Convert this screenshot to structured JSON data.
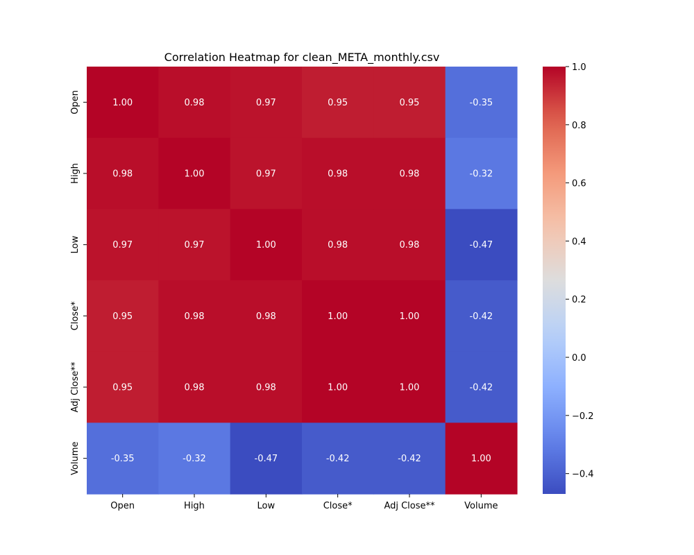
{
  "chart_data": {
    "type": "heatmap",
    "title": "Correlation Heatmap for clean_META_monthly.csv",
    "xlabel": "",
    "ylabel": "",
    "x_categories": [
      "Open",
      "High",
      "Low",
      "Close*",
      "Adj Close**",
      "Volume"
    ],
    "y_categories": [
      "Open",
      "High",
      "Low",
      "Close*",
      "Adj Close**",
      "Volume"
    ],
    "values": [
      [
        1.0,
        0.98,
        0.97,
        0.95,
        0.95,
        -0.35
      ],
      [
        0.98,
        1.0,
        0.97,
        0.98,
        0.98,
        -0.32
      ],
      [
        0.97,
        0.97,
        1.0,
        0.98,
        0.98,
        -0.47
      ],
      [
        0.95,
        0.98,
        0.98,
        1.0,
        1.0,
        -0.42
      ],
      [
        0.95,
        0.98,
        0.98,
        1.0,
        1.0,
        -0.42
      ],
      [
        -0.35,
        -0.32,
        -0.47,
        -0.42,
        -0.42,
        1.0
      ]
    ],
    "value_format": "0.00",
    "colormap": "coolwarm",
    "colorbar": {
      "min": -0.47,
      "max": 1.0,
      "ticks": [
        1.0,
        0.8,
        0.6,
        0.4,
        0.2,
        0.0,
        -0.2,
        -0.4
      ],
      "tick_labels": [
        "1.0",
        "0.8",
        "0.6",
        "0.4",
        "0.2",
        "0.0",
        "−0.2",
        "−0.4"
      ]
    },
    "grid": false,
    "legend": "colorbar-right"
  }
}
